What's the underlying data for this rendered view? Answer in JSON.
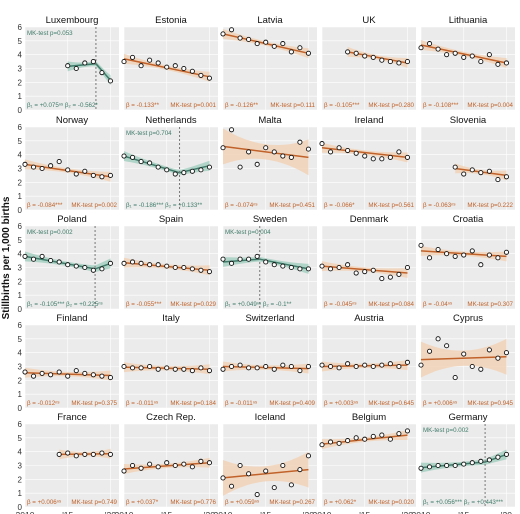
{
  "figure": {
    "ylabel": "Stillbirths per 1,000 births",
    "x_ticks": [
      2010,
      2015,
      2020
    ],
    "x_tick_labels": [
      "2010",
      "'15",
      "'20"
    ],
    "y_ticks": [
      0,
      1,
      2,
      3,
      4,
      5,
      6
    ],
    "colors": {
      "orange": "#c0622a",
      "orange_band": "#f2d2b7",
      "green": "#3f7b69",
      "green_band": "#a7d0c3",
      "panel_bg": "#ebebeb",
      "grid": "#ffffff",
      "breakpoint": "#777777"
    }
  },
  "chart_data": [
    {
      "title": "Luxembourg",
      "type": "scatter",
      "segmented": true,
      "breakpoint": 2018.3,
      "xlim": [
        2010,
        2021
      ],
      "ylim": [
        0,
        6
      ],
      "x": [
        2015,
        2016,
        2017,
        2018,
        2019,
        2020
      ],
      "y": [
        3.2,
        3.0,
        3.4,
        3.5,
        2.7,
        2.1
      ],
      "fit": [
        [
          2015,
          3.15
        ],
        [
          2018.3,
          3.35
        ],
        [
          2020,
          2.15
        ]
      ],
      "mk_label": "MK-test p=0.053",
      "beta_label": "β₁ = +0.075ⁿˢ  β₂ = -0.562*"
    },
    {
      "title": "Estonia",
      "type": "scatter",
      "segmented": false,
      "xlim": [
        2010,
        2021
      ],
      "ylim": [
        0,
        6
      ],
      "x": [
        2010,
        2011,
        2012,
        2013,
        2014,
        2015,
        2016,
        2017,
        2018,
        2019,
        2020
      ],
      "y": [
        3.5,
        3.8,
        3.2,
        3.6,
        3.4,
        3.1,
        3.2,
        3.0,
        2.8,
        2.5,
        2.3
      ],
      "fit": [
        [
          2010,
          3.7
        ],
        [
          2020,
          2.4
        ]
      ],
      "beta_label": "β = -0.133**",
      "mk_label": "MK-test p=0.001"
    },
    {
      "title": "Latvia",
      "type": "scatter",
      "segmented": false,
      "xlim": [
        2010,
        2021
      ],
      "ylim": [
        0,
        6
      ],
      "x": [
        2010,
        2011,
        2012,
        2013,
        2014,
        2015,
        2016,
        2017,
        2018,
        2019,
        2020
      ],
      "y": [
        5.5,
        5.8,
        5.2,
        5.1,
        4.8,
        4.9,
        4.6,
        4.8,
        4.2,
        4.5,
        4.1
      ],
      "fit": [
        [
          2010,
          5.5
        ],
        [
          2020,
          4.1
        ]
      ],
      "beta_label": "β = -0.126**",
      "mk_label": "MK-test p=0.111"
    },
    {
      "title": "UK",
      "type": "scatter",
      "segmented": false,
      "xlim": [
        2010,
        2021
      ],
      "ylim": [
        0,
        6
      ],
      "x": [
        2013,
        2014,
        2015,
        2016,
        2017,
        2018,
        2019,
        2020
      ],
      "y": [
        4.2,
        4.1,
        3.9,
        3.8,
        3.6,
        3.5,
        3.4,
        3.5
      ],
      "fit": [
        [
          2013,
          4.2
        ],
        [
          2020,
          3.4
        ]
      ],
      "beta_label": "β = -0.105***",
      "mk_label": "MK-test p=0.280"
    },
    {
      "title": "Lithuania",
      "type": "scatter",
      "segmented": false,
      "xlim": [
        2010,
        2021
      ],
      "ylim": [
        0,
        6
      ],
      "x": [
        2010,
        2011,
        2012,
        2013,
        2014,
        2015,
        2016,
        2017,
        2018,
        2019,
        2020
      ],
      "y": [
        4.5,
        4.8,
        4.4,
        4.0,
        4.1,
        3.8,
        3.9,
        3.5,
        4.0,
        3.3,
        3.4
      ],
      "fit": [
        [
          2010,
          4.7
        ],
        [
          2020,
          3.4
        ]
      ],
      "beta_label": "β = -0.108***",
      "mk_label": "MK-test p=0.004"
    },
    {
      "title": "Norway",
      "type": "scatter",
      "segmented": false,
      "xlim": [
        2010,
        2021
      ],
      "ylim": [
        0,
        6
      ],
      "x": [
        2010,
        2011,
        2012,
        2013,
        2014,
        2015,
        2016,
        2017,
        2018,
        2019,
        2020
      ],
      "y": [
        3.3,
        3.1,
        3.0,
        3.2,
        3.5,
        2.9,
        2.6,
        2.8,
        2.5,
        2.4,
        2.5
      ],
      "fit": [
        [
          2010,
          3.3
        ],
        [
          2020,
          2.4
        ]
      ],
      "beta_label": "β = -0.084***",
      "mk_label": "MK-test p=0.002"
    },
    {
      "title": "Netherlands",
      "type": "scatter",
      "segmented": true,
      "breakpoint": 2016.5,
      "xlim": [
        2010,
        2021
      ],
      "ylim": [
        0,
        6
      ],
      "x": [
        2010,
        2011,
        2012,
        2013,
        2014,
        2015,
        2016,
        2017,
        2018,
        2019,
        2020
      ],
      "y": [
        3.9,
        3.8,
        3.5,
        3.4,
        3.1,
        2.9,
        2.6,
        2.7,
        2.8,
        2.9,
        3.1
      ],
      "fit": [
        [
          2010,
          3.9
        ],
        [
          2016.5,
          2.7
        ],
        [
          2020,
          3.2
        ]
      ],
      "mk_label": "MK-test p=0.704",
      "beta_label": "β₁ = -0.186***  β₂ = +0.133**"
    },
    {
      "title": "Malta",
      "type": "scatter",
      "segmented": false,
      "band": "wide",
      "xlim": [
        2010,
        2021
      ],
      "ylim": [
        0,
        6
      ],
      "x": [
        2010,
        2011,
        2012,
        2013,
        2014,
        2015,
        2016,
        2017,
        2018,
        2019,
        2020
      ],
      "y": [
        4.5,
        5.8,
        3.1,
        4.2,
        3.3,
        4.5,
        4.2,
        3.9,
        3.8,
        4.9,
        4.4
      ],
      "fit": [
        [
          2010,
          4.6
        ],
        [
          2020,
          3.8
        ]
      ],
      "beta_label": "β = -0.074ⁿˢ",
      "mk_label": "MK-test p=0.451"
    },
    {
      "title": "Ireland",
      "type": "scatter",
      "segmented": false,
      "xlim": [
        2010,
        2021
      ],
      "ylim": [
        0,
        6
      ],
      "x": [
        2010,
        2011,
        2012,
        2013,
        2014,
        2015,
        2016,
        2017,
        2018,
        2019,
        2020
      ],
      "y": [
        4.8,
        4.2,
        4.5,
        4.3,
        4.1,
        3.9,
        3.7,
        3.7,
        3.8,
        4.2,
        3.8
      ],
      "fit": [
        [
          2010,
          4.5
        ],
        [
          2020,
          3.8
        ]
      ],
      "beta_label": "β = -0.066*",
      "mk_label": "MK-test p=0.561"
    },
    {
      "title": "Slovenia",
      "type": "scatter",
      "segmented": false,
      "xlim": [
        2010,
        2021
      ],
      "ylim": [
        0,
        6
      ],
      "x": [
        2014,
        2015,
        2016,
        2017,
        2018,
        2019,
        2020
      ],
      "y": [
        3.1,
        2.6,
        2.9,
        2.7,
        2.8,
        2.2,
        2.4
      ],
      "fit": [
        [
          2014,
          3.0
        ],
        [
          2020,
          2.5
        ]
      ],
      "beta_label": "β = -0.063ⁿˢ",
      "mk_label": "MK-test p=0.222"
    },
    {
      "title": "Poland",
      "type": "scatter",
      "segmented": true,
      "breakpoint": 2018.2,
      "xlim": [
        2010,
        2021
      ],
      "ylim": [
        0,
        6
      ],
      "x": [
        2010,
        2011,
        2012,
        2013,
        2014,
        2015,
        2016,
        2017,
        2018,
        2019,
        2020
      ],
      "y": [
        3.8,
        3.6,
        3.8,
        3.5,
        3.4,
        3.2,
        3.1,
        3.0,
        2.8,
        2.9,
        3.3
      ],
      "fit": [
        [
          2010,
          3.8
        ],
        [
          2018.2,
          2.9
        ],
        [
          2020,
          3.3
        ]
      ],
      "mk_label": "MK-test p=0.002",
      "beta_label": "β₁ = -0.105***  β₂ = +0.225ⁿˢ"
    },
    {
      "title": "Spain",
      "type": "scatter",
      "segmented": false,
      "xlim": [
        2010,
        2021
      ],
      "ylim": [
        0,
        6
      ],
      "x": [
        2010,
        2011,
        2012,
        2013,
        2014,
        2015,
        2016,
        2017,
        2018,
        2019,
        2020
      ],
      "y": [
        3.3,
        3.4,
        3.3,
        3.2,
        3.2,
        3.1,
        3.0,
        3.0,
        2.9,
        2.8,
        2.7
      ],
      "fit": [
        [
          2010,
          3.35
        ],
        [
          2020,
          2.8
        ]
      ],
      "beta_label": "β = -0.055***",
      "mk_label": "MK-test p=0.029"
    },
    {
      "title": "Sweden",
      "type": "scatter",
      "segmented": true,
      "breakpoint": 2014.3,
      "xlim": [
        2010,
        2021
      ],
      "ylim": [
        0,
        6
      ],
      "x": [
        2010,
        2011,
        2012,
        2013,
        2014,
        2015,
        2016,
        2017,
        2018,
        2019,
        2020
      ],
      "y": [
        3.6,
        3.3,
        3.6,
        3.6,
        3.8,
        3.4,
        3.2,
        3.1,
        3.0,
        2.9,
        2.9
      ],
      "fit": [
        [
          2010,
          3.4
        ],
        [
          2014.3,
          3.6
        ],
        [
          2020,
          2.9
        ]
      ],
      "mk_label": "MK-test p=0.004",
      "beta_label": "β₁ = +0.049ⁿˢ  β₂ = -0.1**"
    },
    {
      "title": "Denmark",
      "type": "scatter",
      "segmented": false,
      "xlim": [
        2010,
        2021
      ],
      "ylim": [
        0,
        6
      ],
      "x": [
        2010,
        2011,
        2012,
        2013,
        2014,
        2015,
        2016,
        2017,
        2018,
        2019,
        2020
      ],
      "y": [
        3.1,
        2.9,
        3.0,
        3.2,
        2.6,
        2.7,
        2.8,
        2.2,
        2.3,
        2.5,
        3.0
      ],
      "fit": [
        [
          2010,
          3.1
        ],
        [
          2020,
          2.6
        ]
      ],
      "beta_label": "β = -0.045ⁿˢ",
      "mk_label": "MK-test p=0.084"
    },
    {
      "title": "Croatia",
      "type": "scatter",
      "segmented": false,
      "xlim": [
        2010,
        2021
      ],
      "ylim": [
        0,
        6
      ],
      "x": [
        2010,
        2011,
        2012,
        2013,
        2014,
        2015,
        2016,
        2017,
        2018,
        2019,
        2020
      ],
      "y": [
        4.6,
        3.7,
        4.3,
        4.0,
        3.8,
        3.9,
        4.2,
        3.2,
        3.9,
        3.7,
        4.1
      ],
      "fit": [
        [
          2010,
          4.2
        ],
        [
          2020,
          3.8
        ]
      ],
      "beta_label": "β = -0.04ⁿˢ",
      "mk_label": "MK-test p=0.307"
    },
    {
      "title": "Finland",
      "type": "scatter",
      "segmented": false,
      "xlim": [
        2010,
        2021
      ],
      "ylim": [
        0,
        6
      ],
      "x": [
        2010,
        2011,
        2012,
        2013,
        2014,
        2015,
        2016,
        2017,
        2018,
        2019,
        2020
      ],
      "y": [
        2.6,
        2.3,
        2.5,
        2.4,
        2.6,
        2.3,
        2.7,
        2.5,
        2.4,
        2.3,
        2.2
      ],
      "fit": [
        [
          2010,
          2.55
        ],
        [
          2020,
          2.35
        ]
      ],
      "beta_label": "β = -0.012ⁿˢ",
      "mk_label": "MK-test p=0.375"
    },
    {
      "title": "Italy",
      "type": "scatter",
      "segmented": false,
      "xlim": [
        2010,
        2021
      ],
      "ylim": [
        0,
        6
      ],
      "x": [
        2010,
        2011,
        2012,
        2013,
        2014,
        2015,
        2016,
        2017,
        2018,
        2019,
        2020
      ],
      "y": [
        3.0,
        2.9,
        2.9,
        3.0,
        2.8,
        2.9,
        2.8,
        2.8,
        2.7,
        2.9,
        2.7
      ],
      "fit": [
        [
          2010,
          2.95
        ],
        [
          2020,
          2.8
        ]
      ],
      "beta_label": "β = -0.011ⁿˢ",
      "mk_label": "MK-test p=0.184"
    },
    {
      "title": "Switzerland",
      "type": "scatter",
      "segmented": false,
      "xlim": [
        2010,
        2021
      ],
      "ylim": [
        0,
        6
      ],
      "x": [
        2010,
        2011,
        2012,
        2013,
        2014,
        2015,
        2016,
        2017,
        2018,
        2019,
        2020
      ],
      "y": [
        2.8,
        3.0,
        3.1,
        2.9,
        2.9,
        3.0,
        2.8,
        3.1,
        3.0,
        2.7,
        3.0
      ],
      "fit": [
        [
          2010,
          3.0
        ],
        [
          2020,
          2.85
        ]
      ],
      "beta_label": "β = -0.011ⁿˢ",
      "mk_label": "MK-test p=0.409"
    },
    {
      "title": "Austria",
      "type": "scatter",
      "segmented": false,
      "xlim": [
        2010,
        2021
      ],
      "ylim": [
        0,
        6
      ],
      "x": [
        2010,
        2011,
        2012,
        2013,
        2014,
        2015,
        2016,
        2017,
        2018,
        2019,
        2020
      ],
      "y": [
        3.1,
        3.0,
        2.9,
        3.2,
        3.0,
        3.1,
        3.0,
        3.1,
        3.2,
        3.0,
        3.3
      ],
      "fit": [
        [
          2010,
          3.0
        ],
        [
          2020,
          3.1
        ]
      ],
      "beta_label": "β = +0.003ⁿˢ",
      "mk_label": "MK-test p=0.645"
    },
    {
      "title": "Cyprus",
      "type": "scatter",
      "segmented": false,
      "band": "wide",
      "xlim": [
        2010,
        2021
      ],
      "ylim": [
        0,
        6
      ],
      "x": [
        2010,
        2011,
        2012,
        2013,
        2014,
        2015,
        2016,
        2017,
        2018,
        2019,
        2020
      ],
      "y": [
        3.1,
        4.1,
        5.0,
        4.5,
        2.2,
        3.9,
        3.0,
        2.8,
        4.2,
        3.6,
        4.0
      ],
      "fit": [
        [
          2010,
          3.5
        ],
        [
          2020,
          3.7
        ]
      ],
      "beta_label": "β = +0.006ⁿˢ",
      "mk_label": "MK-test p=0.945"
    },
    {
      "title": "France",
      "type": "scatter",
      "segmented": false,
      "xlim": [
        2010,
        2021
      ],
      "ylim": [
        0,
        6
      ],
      "x": [
        2014,
        2015,
        2016,
        2017,
        2018,
        2019,
        2020
      ],
      "y": [
        3.8,
        3.9,
        3.7,
        3.8,
        3.8,
        3.9,
        3.8
      ],
      "fit": [
        [
          2014,
          3.8
        ],
        [
          2020,
          3.85
        ]
      ],
      "beta_label": "β = +0.006ⁿˢ",
      "mk_label": "MK-test p=0.749"
    },
    {
      "title": "Czech Rep.",
      "type": "scatter",
      "segmented": false,
      "xlim": [
        2010,
        2021
      ],
      "ylim": [
        0,
        6
      ],
      "x": [
        2010,
        2011,
        2012,
        2013,
        2014,
        2015,
        2016,
        2017,
        2018,
        2019,
        2020
      ],
      "y": [
        2.6,
        3.0,
        2.8,
        3.1,
        2.9,
        3.2,
        3.0,
        3.1,
        2.9,
        3.3,
        3.2
      ],
      "fit": [
        [
          2010,
          2.75
        ],
        [
          2020,
          3.2
        ]
      ],
      "beta_label": "β = +0.037*",
      "mk_label": "MK-test p=0.776"
    },
    {
      "title": "Iceland",
      "type": "scatter",
      "segmented": false,
      "band": "wide",
      "xlim": [
        2010,
        2021
      ],
      "ylim": [
        0,
        6
      ],
      "x": [
        2010,
        2011,
        2012,
        2013,
        2014,
        2015,
        2016,
        2017,
        2018,
        2019,
        2020
      ],
      "y": [
        2.1,
        1.5,
        3.0,
        2.4,
        0.9,
        2.6,
        1.4,
        3.0,
        1.6,
        2.7,
        3.7
      ],
      "fit": [
        [
          2010,
          2.1
        ],
        [
          2020,
          2.7
        ]
      ],
      "beta_label": "β = +0.059ⁿˢ",
      "mk_label": "MK-test p=0.267"
    },
    {
      "title": "Belgium",
      "type": "scatter",
      "segmented": false,
      "xlim": [
        2010,
        2021
      ],
      "ylim": [
        0,
        6
      ],
      "x": [
        2010,
        2011,
        2012,
        2013,
        2014,
        2015,
        2016,
        2017,
        2018,
        2019,
        2020
      ],
      "y": [
        4.5,
        4.7,
        4.6,
        4.8,
        5.0,
        4.9,
        5.1,
        5.2,
        4.9,
        5.3,
        5.5
      ],
      "fit": [
        [
          2010,
          4.55
        ],
        [
          2020,
          5.2
        ]
      ],
      "beta_label": "β = +0.062*",
      "mk_label": "MK-test p=0.020"
    },
    {
      "title": "Germany",
      "type": "scatter",
      "segmented": true,
      "breakpoint": 2017.5,
      "xlim": [
        2010,
        2021
      ],
      "ylim": [
        0,
        6
      ],
      "x": [
        2010,
        2011,
        2012,
        2013,
        2014,
        2015,
        2016,
        2017,
        2018,
        2019,
        2020
      ],
      "y": [
        2.8,
        2.9,
        3.0,
        3.0,
        3.0,
        3.1,
        3.2,
        3.3,
        3.4,
        3.6,
        3.8
      ],
      "fit": [
        [
          2010,
          2.85
        ],
        [
          2017.5,
          3.25
        ],
        [
          2020,
          3.8
        ]
      ],
      "mk_label": "MK-test p=0.002",
      "beta_label": "β₁ = +0.056***  β₂ = +0.443***"
    }
  ]
}
